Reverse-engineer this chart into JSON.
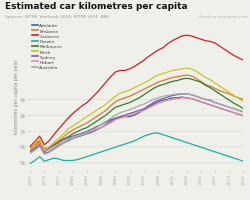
{
  "title": "Estimated car kilometres per capita",
  "sources": "Sources: BITRE Yearbook 2018, BITRE t974, ABS",
  "watermark": "charting transport.com",
  "ylabel": "kilometres per capita per year",
  "years": [
    1971,
    1972,
    1973,
    1974,
    1975,
    1976,
    1977,
    1978,
    1979,
    1980,
    1981,
    1982,
    1983,
    1984,
    1985,
    1986,
    1987,
    1988,
    1989,
    1990,
    1991,
    1992,
    1993,
    1994,
    1995,
    1996,
    1997,
    1998,
    1999,
    2000,
    2001,
    2002,
    2003,
    2004,
    2005,
    2006,
    2007,
    2008,
    2009,
    2010,
    2011,
    2012,
    2013,
    2014,
    2015,
    2016
  ],
  "series": {
    "Adelaide": [
      5.9,
      6.1,
      6.35,
      5.85,
      5.95,
      6.15,
      6.3,
      6.45,
      6.55,
      6.65,
      6.75,
      6.85,
      6.95,
      7.1,
      7.25,
      7.4,
      7.55,
      7.7,
      7.8,
      7.85,
      7.9,
      7.9,
      8.0,
      8.15,
      8.35,
      8.55,
      8.7,
      8.85,
      8.95,
      9.0,
      9.1,
      9.1,
      9.15,
      9.1,
      9.05,
      8.95,
      8.85,
      8.75,
      8.65,
      8.55,
      8.45,
      8.35,
      8.25,
      8.15,
      8.05,
      7.95
    ],
    "Brisbane": [
      5.8,
      6.05,
      6.3,
      5.75,
      5.85,
      6.1,
      6.35,
      6.6,
      6.85,
      7.05,
      7.2,
      7.35,
      7.5,
      7.7,
      7.9,
      8.1,
      8.3,
      8.6,
      8.85,
      9.0,
      9.1,
      9.2,
      9.35,
      9.5,
      9.65,
      9.8,
      9.95,
      10.1,
      10.2,
      10.3,
      10.4,
      10.45,
      10.5,
      10.55,
      10.5,
      10.35,
      10.15,
      9.95,
      9.85,
      9.7,
      9.55,
      9.45,
      9.35,
      9.2,
      9.1,
      9.0
    ],
    "Canberra": [
      6.0,
      6.3,
      6.65,
      6.1,
      6.35,
      6.75,
      7.1,
      7.45,
      7.8,
      8.1,
      8.35,
      8.6,
      8.8,
      9.1,
      9.4,
      9.75,
      10.1,
      10.45,
      10.75,
      10.85,
      10.85,
      10.95,
      11.1,
      11.3,
      11.5,
      11.75,
      11.95,
      12.15,
      12.3,
      12.55,
      12.75,
      12.9,
      13.05,
      13.1,
      13.05,
      12.95,
      12.85,
      12.75,
      12.7,
      12.6,
      12.4,
      12.2,
      12.0,
      11.8,
      11.65,
      11.5
    ],
    "Darwin": [
      4.9,
      5.1,
      5.35,
      5.05,
      5.15,
      5.25,
      5.2,
      5.1,
      5.1,
      5.1,
      5.15,
      5.25,
      5.35,
      5.45,
      5.55,
      5.65,
      5.75,
      5.85,
      5.95,
      6.05,
      6.15,
      6.25,
      6.35,
      6.5,
      6.65,
      6.75,
      6.85,
      6.85,
      6.75,
      6.65,
      6.55,
      6.45,
      6.35,
      6.25,
      6.15,
      6.05,
      5.95,
      5.85,
      5.75,
      5.65,
      5.55,
      5.45,
      5.35,
      5.25,
      5.15,
      5.05
    ],
    "Melbourne": [
      5.7,
      5.9,
      6.15,
      5.65,
      5.85,
      6.05,
      6.25,
      6.45,
      6.6,
      6.8,
      6.95,
      7.1,
      7.2,
      7.4,
      7.6,
      7.8,
      8.0,
      8.25,
      8.5,
      8.6,
      8.7,
      8.8,
      8.95,
      9.1,
      9.3,
      9.5,
      9.7,
      9.85,
      9.95,
      10.05,
      10.15,
      10.2,
      10.3,
      10.35,
      10.3,
      10.2,
      10.1,
      9.9,
      9.75,
      9.55,
      9.35,
      9.15,
      8.95,
      8.75,
      8.6,
      8.4
    ],
    "Perth": [
      5.85,
      6.15,
      6.45,
      5.85,
      5.95,
      6.25,
      6.5,
      6.8,
      7.1,
      7.3,
      7.5,
      7.7,
      7.9,
      8.1,
      8.3,
      8.5,
      8.7,
      8.95,
      9.2,
      9.4,
      9.5,
      9.6,
      9.75,
      9.9,
      10.05,
      10.2,
      10.4,
      10.55,
      10.65,
      10.75,
      10.85,
      10.9,
      10.95,
      11.0,
      10.95,
      10.8,
      10.6,
      10.4,
      10.25,
      10.05,
      9.85,
      9.65,
      9.45,
      9.25,
      9.05,
      8.85
    ],
    "Sydney": [
      5.65,
      5.85,
      6.05,
      5.55,
      5.65,
      5.85,
      6.05,
      6.2,
      6.35,
      6.5,
      6.6,
      6.7,
      6.8,
      6.9,
      7.05,
      7.2,
      7.4,
      7.6,
      7.8,
      7.9,
      8.0,
      8.1,
      8.2,
      8.3,
      8.4,
      8.6,
      8.8,
      8.95,
      9.05,
      9.15,
      9.25,
      9.3,
      9.35,
      9.35,
      9.3,
      9.2,
      9.1,
      9.0,
      8.95,
      8.8,
      8.7,
      8.6,
      8.5,
      8.4,
      8.3,
      8.2
    ],
    "Hobart": [
      5.75,
      5.95,
      6.2,
      5.7,
      5.8,
      6.0,
      6.15,
      6.3,
      6.45,
      6.6,
      6.7,
      6.8,
      6.9,
      7.0,
      7.1,
      7.2,
      7.35,
      7.5,
      7.7,
      7.8,
      7.9,
      8.0,
      8.1,
      8.2,
      8.3,
      8.45,
      8.6,
      8.75,
      8.85,
      8.95,
      9.0,
      9.05,
      9.1,
      9.1,
      9.05,
      8.95,
      8.85,
      8.75,
      8.65,
      8.55,
      8.45,
      8.35,
      8.25,
      8.15,
      8.05,
      7.95
    ],
    "Australia": [
      5.55,
      5.75,
      6.0,
      5.5,
      5.6,
      5.8,
      6.0,
      6.2,
      6.4,
      6.5,
      6.65,
      6.75,
      6.85,
      7.05,
      7.2,
      7.4,
      7.6,
      7.8,
      8.0,
      8.15,
      8.25,
      8.35,
      8.45,
      8.6,
      8.7,
      8.85,
      9.0,
      9.1,
      9.2,
      9.25,
      9.3,
      9.35,
      9.35,
      9.35,
      9.3,
      9.2,
      9.1,
      9.0,
      8.9,
      8.8,
      8.7,
      8.6,
      8.5,
      8.4,
      8.3,
      8.2
    ]
  },
  "colors": {
    "Adelaide": "#3a5fa8",
    "Brisbane": "#e07830",
    "Canberra": "#cc2020",
    "Darwin": "#18b0a8",
    "Melbourne": "#2a8030",
    "Perth": "#c8c820",
    "Sydney": "#7060a8",
    "Hobart": "#e888a0",
    "Australia": "#a8a8a8"
  },
  "ylim": [
    4.5,
    14.0
  ],
  "xlim": [
    1971,
    2016
  ],
  "ytick_vals": [
    5,
    6,
    7,
    8,
    9
  ],
  "ytick_labels": [
    "5k",
    "6k",
    "7k",
    "8k",
    "9k"
  ],
  "bg_color": "#f0f0eb"
}
